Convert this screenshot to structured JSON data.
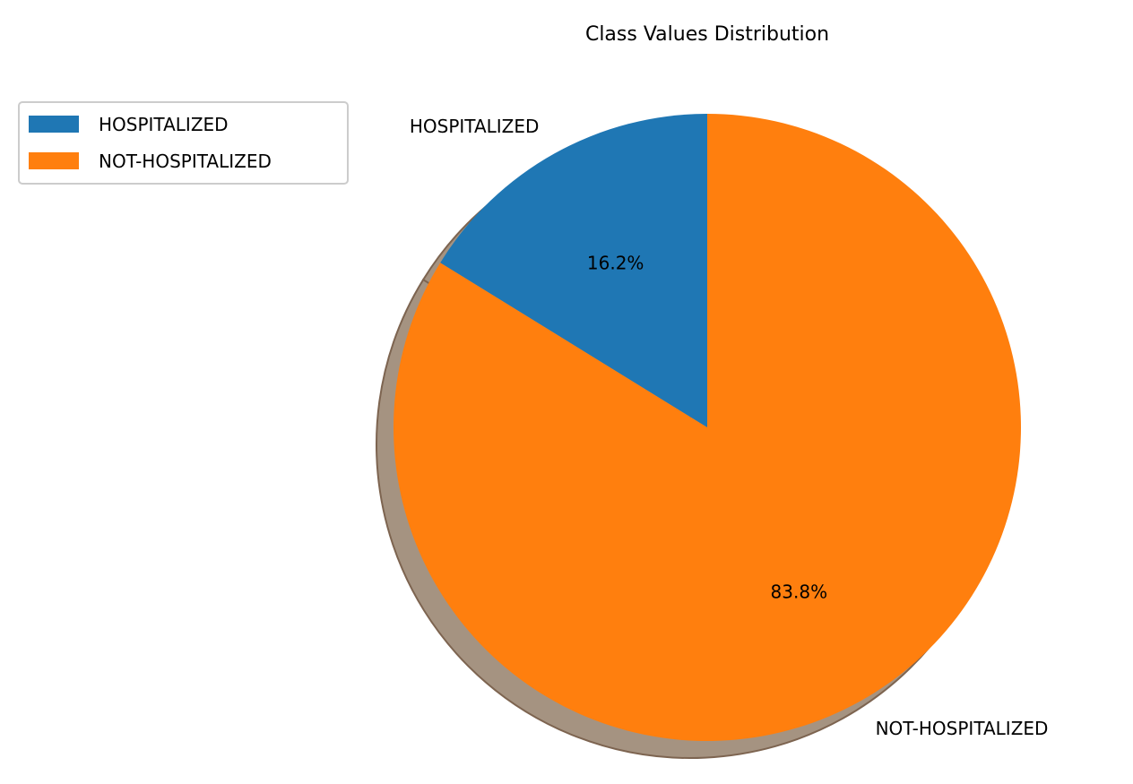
{
  "chart_data": {
    "type": "pie",
    "title": "Class Values Distribution",
    "slices": [
      {
        "label": "HOSPITALIZED",
        "value": 16.2,
        "pct_label": "16.2%",
        "color": "#1f77b4"
      },
      {
        "label": "NOT-HOSPITALIZED",
        "value": 83.8,
        "pct_label": "83.8%",
        "color": "#ff7f0e"
      }
    ],
    "start_angle_deg": 90,
    "direction": "counterclockwise",
    "shadow": true,
    "legend": {
      "position": "upper-left",
      "entries": [
        "HOSPITALIZED",
        "NOT-HOSPITALIZED"
      ]
    }
  }
}
